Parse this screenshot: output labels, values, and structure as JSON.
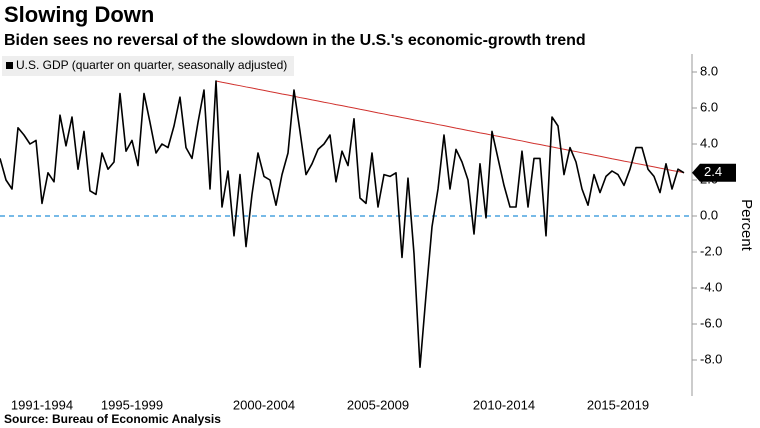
{
  "chart_data": {
    "type": "line",
    "title": "Slowing Down",
    "subtitle": "Biden sees no reversal of the slowdown in the U.S.'s economic-growth trend",
    "y_label": "Percent",
    "source": "Source: Bureau of Economic Analysis",
    "categories": [
      null,
      null,
      null,
      null,
      null,
      null,
      null,
      "1991-1994",
      null,
      null,
      null,
      null,
      null,
      null,
      null,
      null,
      null,
      null,
      null,
      null,
      null,
      null,
      "1995-1999",
      null,
      null,
      null,
      null,
      null,
      null,
      null,
      null,
      null,
      null,
      null,
      null,
      null,
      null,
      null,
      null,
      null,
      null,
      null,
      null,
      null,
      "2000-2004",
      null,
      null,
      null,
      null,
      null,
      null,
      null,
      null,
      null,
      null,
      null,
      null,
      null,
      null,
      null,
      null,
      null,
      null,
      "2005-2009",
      null,
      null,
      null,
      null,
      null,
      null,
      null,
      null,
      null,
      null,
      null,
      null,
      null,
      null,
      null,
      null,
      null,
      null,
      null,
      null,
      "2010-2014",
      null,
      null,
      null,
      null,
      null,
      null,
      null,
      null,
      null,
      null,
      null,
      null,
      null,
      null,
      null,
      null,
      null,
      null,
      "2015-2019",
      null,
      null,
      null,
      null,
      null,
      null,
      null,
      null,
      null,
      null,
      null
    ],
    "series": [
      {
        "name": "U.S. GDP (quarter on quarter, seasonally adjusted)",
        "color": "#000000",
        "values": [
          3.2,
          2.0,
          1.5,
          4.9,
          4.5,
          4.0,
          4.2,
          0.7,
          2.4,
          1.9,
          5.6,
          3.9,
          5.5,
          2.6,
          4.7,
          1.4,
          1.2,
          3.5,
          2.6,
          3.0,
          6.8,
          3.6,
          4.2,
          2.8,
          6.8,
          5.2,
          3.5,
          4.0,
          3.8,
          5.0,
          6.6,
          3.8,
          3.2,
          5.2,
          7.0,
          1.5,
          7.5,
          0.5,
          2.5,
          -1.1,
          2.3,
          -1.7,
          1.2,
          3.5,
          2.2,
          2.0,
          0.6,
          2.3,
          3.5,
          7.0,
          4.7,
          2.3,
          2.9,
          3.7,
          4.0,
          4.5,
          1.9,
          3.6,
          2.8,
          5.4,
          1.0,
          0.7,
          3.5,
          0.5,
          2.3,
          2.2,
          2.4,
          -2.3,
          2.1,
          -2.1,
          -8.4,
          -4.4,
          -0.6,
          1.5,
          4.5,
          1.5,
          3.7,
          3.0,
          2.0,
          -1.0,
          2.9,
          -0.1,
          4.7,
          3.2,
          1.7,
          0.5,
          0.5,
          3.6,
          0.5,
          3.2,
          3.2,
          -1.1,
          5.5,
          5.0,
          2.3,
          3.8,
          3.0,
          1.5,
          0.6,
          2.3,
          1.3,
          2.2,
          2.5,
          2.3,
          1.7,
          2.6,
          3.8,
          3.8,
          2.6,
          2.2,
          1.3,
          2.9,
          1.5,
          2.6,
          2.4
        ]
      },
      {
        "color": "#d0312d",
        "values": [
          null,
          null,
          null,
          null,
          null,
          null,
          null,
          null,
          null,
          null,
          null,
          null,
          null,
          null,
          null,
          null,
          null,
          null,
          null,
          null,
          null,
          null,
          null,
          null,
          null,
          null,
          null,
          null,
          null,
          null,
          null,
          null,
          null,
          null,
          null,
          null,
          7.5,
          7.43,
          7.37,
          7.3,
          7.24,
          7.17,
          7.11,
          7.04,
          6.98,
          6.91,
          6.85,
          6.78,
          6.72,
          6.65,
          6.58,
          6.52,
          6.45,
          6.39,
          6.32,
          6.26,
          6.19,
          6.13,
          6.06,
          6.0,
          5.93,
          5.87,
          5.8,
          5.73,
          5.67,
          5.6,
          5.54,
          5.47,
          5.41,
          5.34,
          5.28,
          5.21,
          5.15,
          5.08,
          5.02,
          4.95,
          4.88,
          4.82,
          4.75,
          4.69,
          4.62,
          4.56,
          4.49,
          4.43,
          4.36,
          4.3,
          4.23,
          4.17,
          4.1,
          4.03,
          3.97,
          3.9,
          3.84,
          3.77,
          3.71,
          3.64,
          3.58,
          3.51,
          3.45,
          3.38,
          3.32,
          3.25,
          3.18,
          3.12,
          3.05,
          2.99,
          2.92,
          2.86,
          2.79,
          2.73,
          2.66,
          2.6,
          2.53,
          2.47,
          2.4
        ]
      }
    ],
    "ylim": [
      -10,
      9
    ],
    "yticks": [
      {
        "value": -8,
        "label": "-8.0"
      },
      {
        "value": -6,
        "label": "-6.0"
      },
      {
        "value": -4,
        "label": "-4.0"
      },
      {
        "value": -2,
        "label": "-2.0"
      },
      {
        "value": 0,
        "label": "0.0"
      },
      {
        "value": 2,
        "label": "2.0"
      },
      {
        "value": 4,
        "label": "4.0"
      },
      {
        "value": 6,
        "label": "6.0"
      },
      {
        "value": 8,
        "label": "8.0"
      }
    ],
    "y_axis_side": "right",
    "grid": false,
    "reference_lines": [
      {
        "value": 0,
        "color": "#4aa3df"
      }
    ],
    "legend": "top-left"
  }
}
